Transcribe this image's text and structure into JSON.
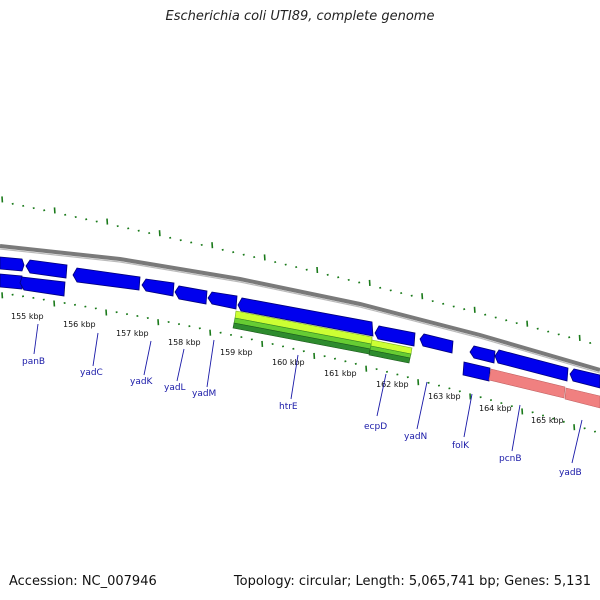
{
  "header": {
    "title": "Escherichia coli UTI89, complete genome"
  },
  "footer": {
    "accession": "Accession: NC_007946",
    "topology": "Topology: circular; Length: 5,065,741 bp; Genes: 5,131"
  },
  "map": {
    "colors": {
      "backbone": "#808080",
      "gene_forward": "#0000ee",
      "gene_reverse": "#0000ee",
      "rna_feature": "#66cc33",
      "rrna_feature": "#f08080",
      "minor_tick": "#1a7a1a",
      "major_tick": "#1a7a1a",
      "label": "#1a1aa8"
    },
    "kbp_ticks": [
      "155 kbp",
      "156 kbp",
      "157 kbp",
      "158 kbp",
      "159 kbp",
      "160 kbp",
      "161 kbp",
      "162 kbp",
      "163 kbp",
      "164 kbp",
      "165 kbp"
    ],
    "gene_labels": [
      "panB",
      "yadC",
      "yadK",
      "yadL",
      "yadM",
      "htrE",
      "ecpD",
      "yadN",
      "folK",
      "pcnB",
      "yadB"
    ]
  }
}
